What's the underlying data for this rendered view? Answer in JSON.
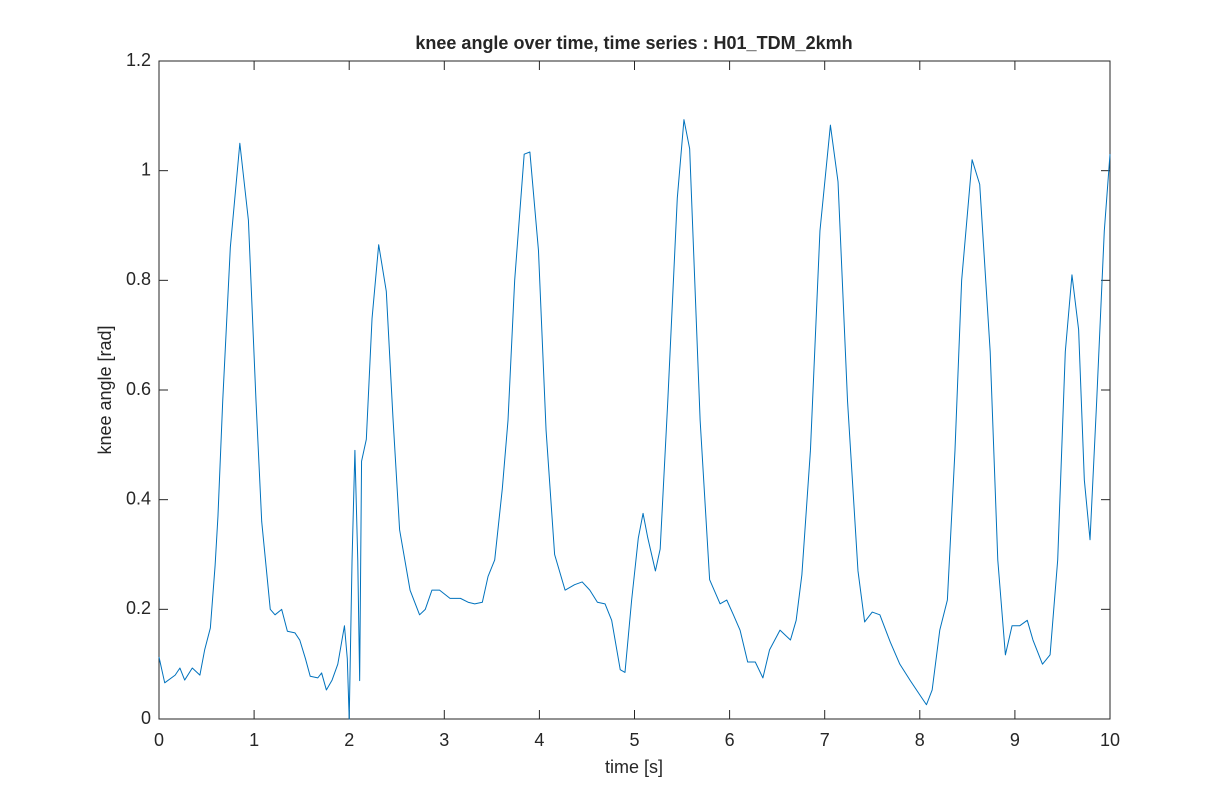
{
  "chart_data": {
    "type": "line",
    "title": "knee angle over time, time series : H01_TDM_2kmh",
    "x_label": "time [s]",
    "y_label": "knee angle [rad]",
    "xlim": [
      0,
      10
    ],
    "ylim": [
      0,
      1.2
    ],
    "xticks": [
      0,
      1,
      2,
      3,
      4,
      5,
      6,
      7,
      8,
      9,
      10
    ],
    "yticks": [
      0,
      0.2,
      0.4,
      0.6,
      0.8,
      1,
      1.2
    ],
    "grid": false,
    "x": [
      0,
      0.06,
      0.17,
      0.22,
      0.27,
      0.35,
      0.43,
      0.48,
      0.54,
      0.59,
      0.62,
      0.67,
      0.75,
      0.85,
      0.94,
      1.02,
      1.08,
      1.17,
      1.22,
      1.29,
      1.35,
      1.43,
      1.48,
      1.54,
      1.59,
      1.67,
      1.71,
      1.76,
      1.82,
      1.88,
      1.95,
      1.98,
      2.0,
      2.03,
      2.06,
      2.09,
      2.11,
      2.13,
      2.18,
      2.24,
      2.31,
      2.39,
      2.46,
      2.53,
      2.64,
      2.74,
      2.8,
      2.87,
      2.95,
      3.06,
      3.17,
      3.25,
      3.32,
      3.4,
      3.46,
      3.53,
      3.61,
      3.67,
      3.74,
      3.84,
      3.9,
      3.99,
      4.07,
      4.16,
      4.27,
      4.37,
      4.45,
      4.53,
      4.61,
      4.69,
      4.76,
      4.85,
      4.9,
      4.97,
      5.04,
      5.09,
      5.14,
      5.22,
      5.27,
      5.35,
      5.45,
      5.52,
      5.58,
      5.69,
      5.79,
      5.9,
      5.97,
      6.04,
      6.11,
      6.19,
      6.27,
      6.35,
      6.42,
      6.53,
      6.64,
      6.7,
      6.76,
      6.85,
      6.95,
      7.06,
      7.14,
      7.24,
      7.35,
      7.42,
      7.5,
      7.58,
      7.69,
      7.79,
      7.9,
      8.0,
      8.07,
      8.13,
      8.21,
      8.29,
      8.37,
      8.44,
      8.55,
      8.63,
      8.74,
      8.82,
      8.9,
      8.97,
      9.05,
      9.13,
      9.19,
      9.29,
      9.37,
      9.45,
      9.53,
      9.6,
      9.67,
      9.73,
      9.79,
      9.86,
      9.94,
      10.0
    ],
    "series": [
      {
        "name": "knee angle",
        "color": "#0072bd",
        "values": [
          0.113,
          0.066,
          0.08,
          0.093,
          0.071,
          0.093,
          0.08,
          0.126,
          0.166,
          0.28,
          0.37,
          0.58,
          0.86,
          1.05,
          0.91,
          0.58,
          0.36,
          0.2,
          0.19,
          0.2,
          0.16,
          0.157,
          0.144,
          0.11,
          0.078,
          0.075,
          0.084,
          0.053,
          0.071,
          0.1,
          0.17,
          0.11,
          0,
          0.29,
          0.49,
          0.29,
          0.07,
          0.47,
          0.51,
          0.73,
          0.865,
          0.78,
          0.55,
          0.345,
          0.235,
          0.19,
          0.2,
          0.235,
          0.235,
          0.22,
          0.22,
          0.213,
          0.21,
          0.213,
          0.26,
          0.29,
          0.42,
          0.545,
          0.8,
          1.03,
          1.034,
          0.855,
          0.527,
          0.3,
          0.235,
          0.245,
          0.25,
          0.235,
          0.213,
          0.21,
          0.18,
          0.09,
          0.085,
          0.217,
          0.33,
          0.375,
          0.33,
          0.27,
          0.31,
          0.58,
          0.95,
          1.093,
          1.04,
          0.545,
          0.254,
          0.21,
          0.217,
          0.19,
          0.162,
          0.104,
          0.104,
          0.075,
          0.126,
          0.162,
          0.144,
          0.18,
          0.263,
          0.49,
          0.89,
          1.083,
          0.98,
          0.58,
          0.27,
          0.177,
          0.195,
          0.19,
          0.14,
          0.1,
          0.07,
          0.044,
          0.026,
          0.053,
          0.162,
          0.217,
          0.49,
          0.8,
          1.02,
          0.975,
          0.67,
          0.29,
          0.117,
          0.17,
          0.17,
          0.18,
          0.144,
          0.1,
          0.117,
          0.29,
          0.67,
          0.81,
          0.71,
          0.436,
          0.327,
          0.58,
          0.89,
          1.03
        ]
      }
    ]
  }
}
